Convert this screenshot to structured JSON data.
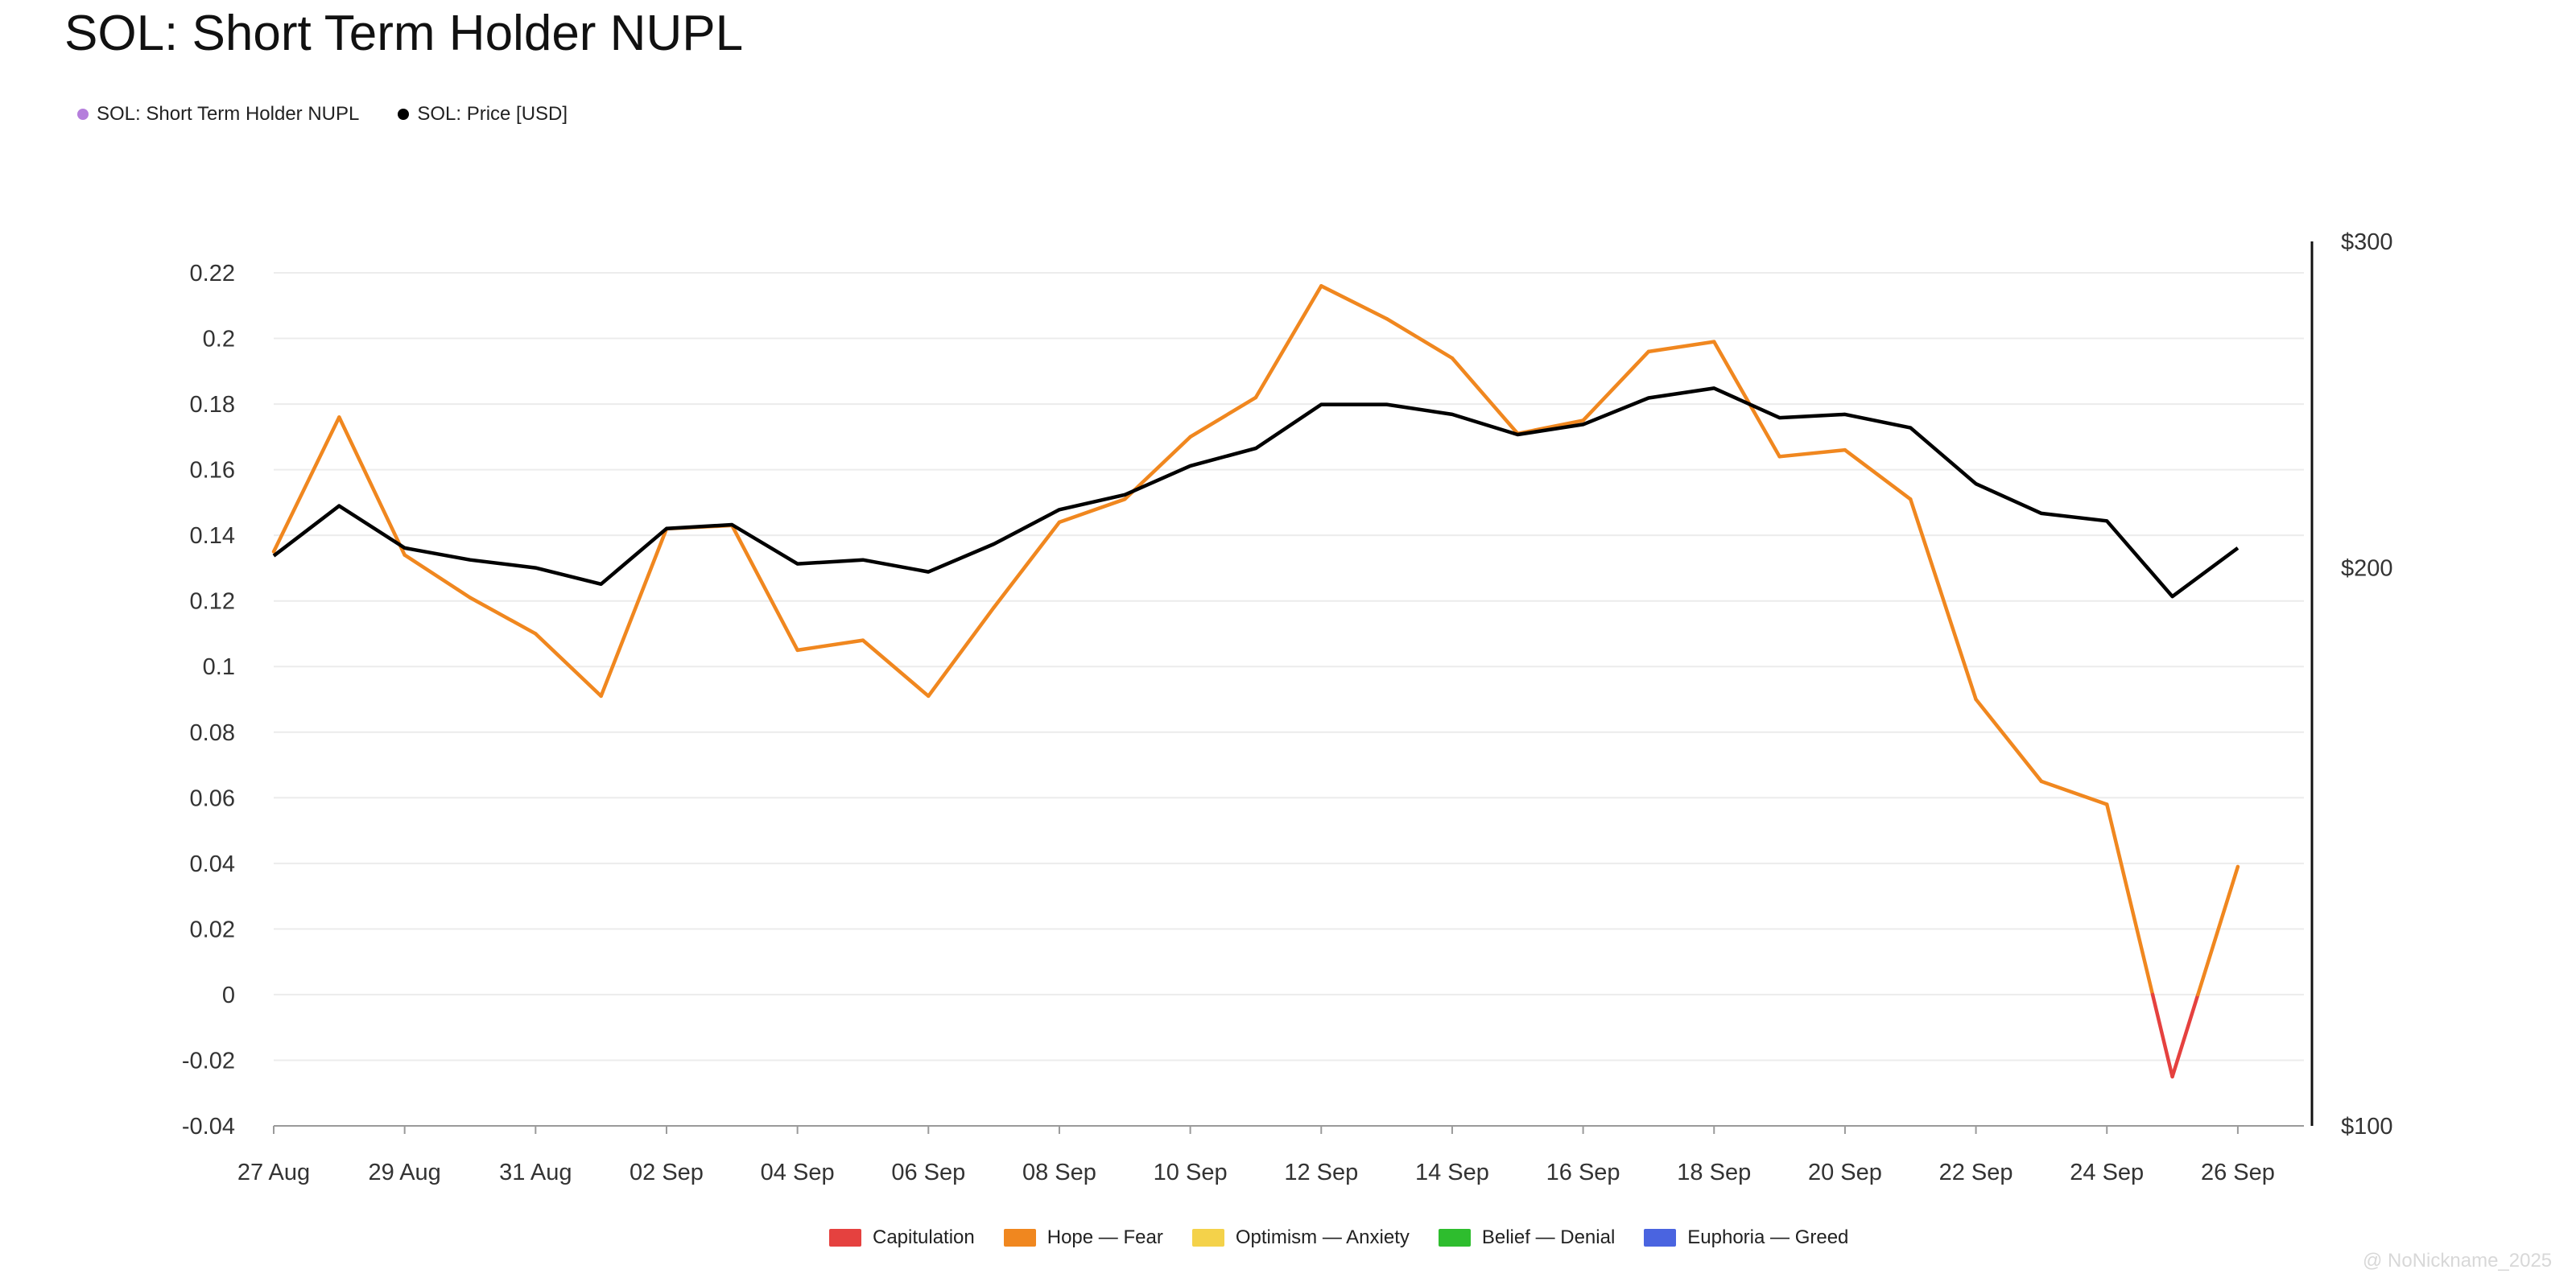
{
  "chart_data": {
    "type": "line",
    "title": "SOL: Short Term Holder NUPL",
    "legend": [
      {
        "name": "SOL: Short Term Holder NUPL",
        "color": "#b57edc"
      },
      {
        "name": "SOL: Price [USD]",
        "color": "#000000"
      }
    ],
    "zone_legend": [
      {
        "name": "Capitulation",
        "color": "#e5413f"
      },
      {
        "name": "Hope — Fear",
        "color": "#f0871f"
      },
      {
        "name": "Optimism — Anxiety",
        "color": "#f4d24a"
      },
      {
        "name": "Belief — Denial",
        "color": "#2ebd2e"
      },
      {
        "name": "Euphoria — Greed",
        "color": "#4a64e0"
      }
    ],
    "x_tick_labels": [
      "27 Aug",
      "29 Aug",
      "31 Aug",
      "02 Sep",
      "04 Sep",
      "06 Sep",
      "08 Sep",
      "10 Sep",
      "12 Sep",
      "14 Sep",
      "16 Sep",
      "18 Sep",
      "20 Sep",
      "22 Sep",
      "24 Sep",
      "26 Sep"
    ],
    "x": [
      "27 Aug",
      "28 Aug",
      "29 Aug",
      "30 Aug",
      "31 Aug",
      "01 Sep",
      "02 Sep",
      "03 Sep",
      "04 Sep",
      "05 Sep",
      "06 Sep",
      "07 Sep",
      "08 Sep",
      "09 Sep",
      "10 Sep",
      "11 Sep",
      "12 Sep",
      "13 Sep",
      "14 Sep",
      "15 Sep",
      "16 Sep",
      "17 Sep",
      "18 Sep",
      "19 Sep",
      "20 Sep",
      "21 Sep",
      "22 Sep",
      "23 Sep",
      "24 Sep",
      "25 Sep",
      "26 Sep"
    ],
    "left_axis": {
      "ylim": [
        -0.04,
        0.22
      ],
      "tick_labels": [
        "0.22",
        "0.2",
        "0.18",
        "0.16",
        "0.14",
        "0.12",
        "0.1",
        "0.08",
        "0.06",
        "0.04",
        "0.02",
        "0",
        "-0.02",
        "-0.04"
      ],
      "tick_values": [
        0.22,
        0.2,
        0.18,
        0.16,
        0.14,
        0.12,
        0.1,
        0.08,
        0.06,
        0.04,
        0.02,
        0,
        -0.02,
        -0.04
      ]
    },
    "right_axis": {
      "ylim": [
        100,
        300
      ],
      "scale": "log",
      "tick_labels": [
        "$300",
        "$200",
        "$100"
      ],
      "tick_values": [
        300,
        200,
        100
      ]
    },
    "grid": true,
    "series": [
      {
        "name": "SOL: Short Term Holder NUPL",
        "axis": "left",
        "values": [
          0.135,
          0.176,
          0.134,
          0.121,
          0.11,
          0.091,
          0.142,
          0.143,
          0.105,
          0.108,
          0.091,
          0.118,
          0.144,
          0.151,
          0.17,
          0.182,
          0.216,
          0.206,
          0.194,
          0.171,
          0.175,
          0.196,
          0.199,
          0.164,
          0.166,
          0.151,
          0.09,
          0.065,
          0.058,
          -0.025,
          0.039
        ]
      },
      {
        "name": "SOL: Price [USD]",
        "axis": "right",
        "color": "#000000",
        "values": [
          203,
          216,
          205,
          202,
          200,
          196,
          210,
          211,
          201,
          202,
          199,
          206,
          215,
          219,
          227,
          232,
          245,
          245,
          242,
          236,
          239,
          247,
          250,
          241,
          242,
          238,
          222,
          214,
          212,
          193,
          205
        ]
      }
    ]
  },
  "watermark": "@ NoNickname_2025"
}
